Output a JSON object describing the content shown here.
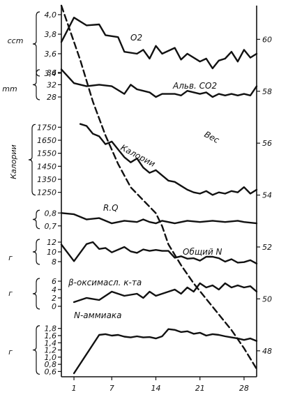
{
  "chart_data": {
    "type": "line",
    "x_ticks": [
      1,
      7,
      14,
      21,
      28
    ],
    "xlim": [
      -1,
      30
    ],
    "right_axis": {
      "ticks": [
        48,
        50,
        52,
        54,
        56,
        58,
        60
      ],
      "ylim": [
        47,
        61.3
      ]
    },
    "panels": [
      {
        "id": "o2",
        "unit": "ccm",
        "ticks": [
          "4,0",
          "3,8",
          "3,6",
          "3,4"
        ],
        "tick_values": [
          4.0,
          3.8,
          3.6,
          3.4
        ],
        "ylim": [
          3.4,
          4.05
        ],
        "series": [
          {
            "name": "O2",
            "x": [
              -1,
              1,
              3,
              5,
              6,
              8,
              9,
              11,
              12,
              13,
              14,
              15,
              17,
              18,
              19,
              21,
              22,
              23,
              24,
              25,
              26,
              27,
              28,
              29,
              30
            ],
            "y": [
              3.72,
              3.97,
              3.89,
              3.9,
              3.79,
              3.77,
              3.62,
              3.6,
              3.64,
              3.55,
              3.68,
              3.6,
              3.66,
              3.54,
              3.6,
              3.52,
              3.55,
              3.45,
              3.53,
              3.55,
              3.62,
              3.52,
              3.64,
              3.56,
              3.6
            ]
          }
        ]
      },
      {
        "id": "alv_co2",
        "unit": "mm",
        "ticks": [
          "36",
          "32",
          "28"
        ],
        "tick_values": [
          36,
          32,
          28
        ],
        "ylim": [
          25.5,
          38
        ],
        "series": [
          {
            "name": "Альв. CO2",
            "x": [
              -1,
              1,
              3,
              5,
              7,
              9,
              10,
              11,
              12,
              13,
              14,
              15,
              17,
              18,
              19,
              21,
              22,
              23,
              24,
              25,
              26,
              27,
              28,
              29,
              30
            ],
            "y": [
              37,
              32.5,
              31.5,
              32,
              31.5,
              29,
              32,
              30.5,
              30,
              29.5,
              28,
              29,
              29,
              28.5,
              30,
              29,
              29.5,
              28,
              29,
              28.5,
              29,
              28.5,
              29,
              28.5,
              31.5
            ]
          }
        ]
      },
      {
        "id": "calories",
        "unit": "Калории",
        "ticks": [
          "1750",
          "1650",
          "1550",
          "1450",
          "1350",
          "1250"
        ],
        "tick_values": [
          1750,
          1650,
          1550,
          1450,
          1350,
          1250
        ],
        "ylim": [
          1200,
          1800
        ],
        "series": [
          {
            "name": "Калории",
            "x": [
              2,
              3,
              4,
              5,
              6,
              7,
              8,
              9,
              10,
              11,
              12,
              13,
              14,
              15,
              16,
              17,
              18,
              19,
              20,
              21,
              22,
              23,
              24,
              25,
              26,
              27,
              28,
              29,
              30
            ],
            "y": [
              1775,
              1760,
              1700,
              1680,
              1620,
              1640,
              1580,
              1520,
              1480,
              1510,
              1440,
              1400,
              1420,
              1380,
              1340,
              1330,
              1300,
              1270,
              1250,
              1240,
              1260,
              1230,
              1250,
              1240,
              1260,
              1250,
              1290,
              1240,
              1270
            ]
          }
        ]
      },
      {
        "id": "rq",
        "unit": "",
        "ticks": [
          "0,8",
          "0,7"
        ],
        "tick_values": [
          0.8,
          0.7
        ],
        "ylim": [
          0.65,
          0.85
        ],
        "series": [
          {
            "name": "R.Q",
            "x": [
              -1,
              1,
              3,
              5,
              7,
              9,
              11,
              12,
              13,
              14,
              15,
              17,
              19,
              21,
              23,
              25,
              27,
              28,
              30
            ],
            "y": [
              0.8,
              0.79,
              0.75,
              0.76,
              0.72,
              0.74,
              0.73,
              0.75,
              0.73,
              0.72,
              0.74,
              0.72,
              0.74,
              0.73,
              0.74,
              0.73,
              0.74,
              0.73,
              0.72
            ]
          }
        ]
      },
      {
        "id": "total_n",
        "unit": "г",
        "ticks": [
          "12",
          "10",
          "8"
        ],
        "tick_values": [
          12,
          10,
          8
        ],
        "ylim": [
          7,
          13
        ],
        "series": [
          {
            "name": "Общий N",
            "x": [
              -1,
              1,
              3,
              4,
              5,
              6,
              7,
              9,
              10,
              11,
              12,
              13,
              14,
              15,
              16,
              17,
              18,
              19,
              20,
              21,
              22,
              23,
              24,
              25,
              26,
              27,
              28,
              29,
              30
            ],
            "y": [
              11.5,
              8.1,
              11.6,
              12,
              10.6,
              10.8,
              9.9,
              11,
              10.1,
              9.8,
              10.5,
              10.2,
              10.4,
              10.2,
              10.2,
              8.8,
              9.1,
              8.6,
              8.7,
              8.2,
              9,
              9,
              8.7,
              8,
              8.5,
              7.8,
              7.9,
              8.3,
              7.6
            ]
          }
        ]
      },
      {
        "id": "beta_hydroxybutyric",
        "unit": "г",
        "ticks": [
          "6",
          "4",
          "2",
          "0"
        ],
        "tick_values": [
          6,
          4,
          2,
          0
        ],
        "ylim": [
          -1,
          7
        ],
        "series": [
          {
            "name": "β-оксимасл. к-та",
            "x": [
              1,
              3,
              5,
              7,
              9,
              11,
              12,
              13,
              14,
              15,
              17,
              18,
              19,
              20,
              21,
              22,
              23,
              24,
              25,
              26,
              27,
              28,
              29,
              30
            ],
            "y": [
              1,
              2,
              1.5,
              3.5,
              2.5,
              3,
              2,
              3.5,
              2.5,
              3,
              4,
              3,
              4.5,
              3.5,
              5.5,
              4.5,
              5,
              4,
              5.5,
              4.5,
              5,
              4.5,
              4.8,
              3.5
            ]
          }
        ]
      },
      {
        "id": "ammonia_n",
        "unit": "г",
        "ticks": [
          "1,8",
          "1,6",
          "1,4",
          "1,2",
          "1,0",
          "0,8",
          "0,6"
        ],
        "tick_values": [
          1.8,
          1.6,
          1.4,
          1.2,
          1.0,
          0.8,
          0.6
        ],
        "ylim": [
          0.55,
          1.95
        ],
        "series": [
          {
            "name": "N-аммиака",
            "x": [
              1,
              5,
              6,
              7,
              8,
              9,
              10,
              11,
              12,
              13,
              14,
              15,
              16,
              17,
              18,
              19,
              20,
              21,
              22,
              23,
              24,
              25,
              26,
              27,
              28,
              29,
              30
            ],
            "y": [
              0.55,
              1.62,
              1.64,
              1.6,
              1.62,
              1.57,
              1.55,
              1.58,
              1.55,
              1.56,
              1.52,
              1.58,
              1.78,
              1.76,
              1.7,
              1.72,
              1.65,
              1.68,
              1.6,
              1.64,
              1.62,
              1.58,
              1.55,
              1.52,
              1.48,
              1.52,
              1.45
            ]
          }
        ]
      }
    ],
    "weight_series": {
      "name": "Вес",
      "axis": "right",
      "style": "dashed",
      "x": [
        -1,
        2,
        4,
        6,
        8,
        10,
        12,
        14,
        15,
        16,
        18,
        20,
        22,
        24,
        26,
        28,
        30
      ],
      "y": [
        61.3,
        59.2,
        57.6,
        56.3,
        55.2,
        54.3,
        53.8,
        53.3,
        52.8,
        52.1,
        51.3,
        50.6,
        50.0,
        49.4,
        48.8,
        48.1,
        47.3
      ]
    },
    "grid": false,
    "legend": "none"
  }
}
